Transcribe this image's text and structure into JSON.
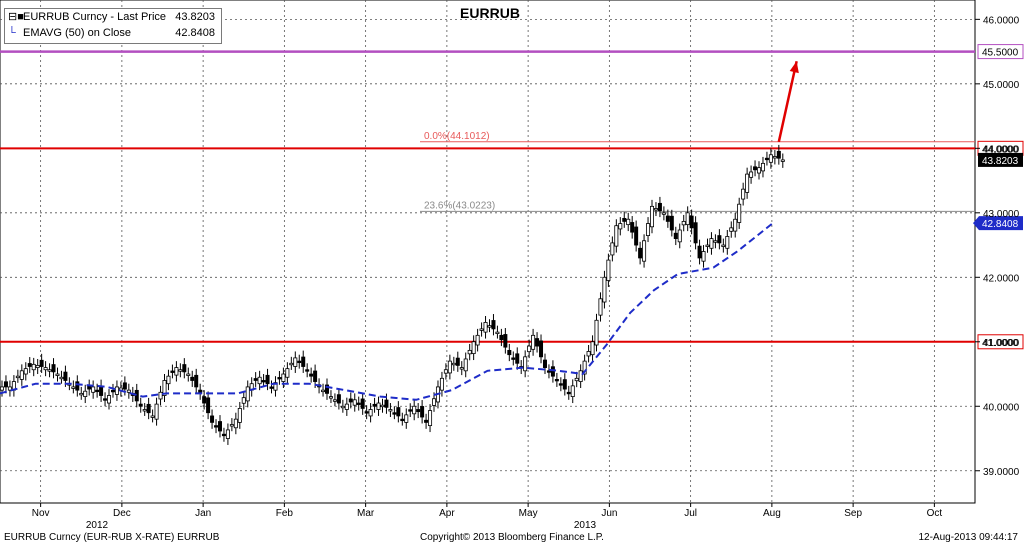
{
  "legend": {
    "series1_label": "EURRUB Curncy - Last Price",
    "series1_value": "43.8203",
    "series2_label": "EMAVG (50) on Close",
    "series2_value": "42.8408"
  },
  "footer": {
    "left": "EURRUB Curncy (EUR-RUB X-RATE) EURRUB",
    "center": "Copyright© 2013 Bloomberg Finance L.P.",
    "right": "12-Aug-2013 09:44:17"
  },
  "chart_data": {
    "type": "candlestick-line",
    "title": "EURRUB",
    "ylim": [
      38.5,
      46.3
    ],
    "y_ticks": [
      "46.0000",
      "45.0000",
      "44.0000",
      "43.0000",
      "42.0000",
      "41.0000",
      "40.0000",
      "39.0000"
    ],
    "months": [
      "Nov",
      "Dec",
      "Jan",
      "Feb",
      "Mar",
      "Apr",
      "May",
      "Jun",
      "Jul",
      "Aug",
      "Sep",
      "Oct"
    ],
    "years": [
      "2012",
      "2013"
    ],
    "grid": true,
    "colors": {
      "price": "#000000",
      "ema": "#1e2cc8",
      "level": "#e00000",
      "target": "#b34fc0",
      "fib_618": "#e85a5a",
      "fib_236": "#8a8a8a",
      "arrow": "#e00000"
    },
    "horizontal_levels": [
      {
        "value": 45.5,
        "label": "45.5000",
        "style": "target"
      },
      {
        "value": 44.0,
        "label": "44.0000",
        "style": "level"
      },
      {
        "value": 41.0,
        "label": "41.0000",
        "style": "level"
      }
    ],
    "fib_levels": [
      {
        "value": 44.1012,
        "label": "0.0%(44.1012)"
      },
      {
        "value": 43.0223,
        "label": "23.6%(43.0223)"
      }
    ],
    "last_price": {
      "value": 43.8203,
      "label": "43.8203"
    },
    "ema_last": {
      "value": 42.8408,
      "label": "42.8408"
    },
    "arrow": {
      "from": [
        65.5,
        44.1
      ],
      "to": [
        67.0,
        45.35
      ]
    },
    "price_series": [
      {
        "x": 0,
        "y": 40.3
      },
      {
        "x": 1,
        "y": 40.55
      },
      {
        "x": 2,
        "y": 40.65
      },
      {
        "x": 3,
        "y": 40.6
      },
      {
        "x": 4,
        "y": 40.5
      },
      {
        "x": 5,
        "y": 40.35
      },
      {
        "x": 6,
        "y": 40.2
      },
      {
        "x": 7,
        "y": 40.3
      },
      {
        "x": 8,
        "y": 40.1
      },
      {
        "x": 9,
        "y": 40.3
      },
      {
        "x": 10,
        "y": 40.25
      },
      {
        "x": 11,
        "y": 40.0
      },
      {
        "x": 12,
        "y": 39.85
      },
      {
        "x": 13,
        "y": 40.4
      },
      {
        "x": 14,
        "y": 40.6
      },
      {
        "x": 15,
        "y": 40.5
      },
      {
        "x": 16,
        "y": 40.2
      },
      {
        "x": 17,
        "y": 39.75
      },
      {
        "x": 18,
        "y": 39.55
      },
      {
        "x": 19,
        "y": 39.8
      },
      {
        "x": 20,
        "y": 40.3
      },
      {
        "x": 21,
        "y": 40.45
      },
      {
        "x": 22,
        "y": 40.3
      },
      {
        "x": 23,
        "y": 40.5
      },
      {
        "x": 24,
        "y": 40.75
      },
      {
        "x": 25,
        "y": 40.55
      },
      {
        "x": 26,
        "y": 40.3
      },
      {
        "x": 27,
        "y": 40.15
      },
      {
        "x": 28,
        "y": 40.0
      },
      {
        "x": 29,
        "y": 40.1
      },
      {
        "x": 30,
        "y": 39.9
      },
      {
        "x": 31,
        "y": 40.05
      },
      {
        "x": 32,
        "y": 39.95
      },
      {
        "x": 33,
        "y": 39.8
      },
      {
        "x": 34,
        "y": 40.0
      },
      {
        "x": 35,
        "y": 39.75
      },
      {
        "x": 36,
        "y": 40.3
      },
      {
        "x": 37,
        "y": 40.7
      },
      {
        "x": 38,
        "y": 40.6
      },
      {
        "x": 39,
        "y": 41.0
      },
      {
        "x": 40,
        "y": 41.3
      },
      {
        "x": 41,
        "y": 41.15
      },
      {
        "x": 42,
        "y": 40.8
      },
      {
        "x": 43,
        "y": 40.6
      },
      {
        "x": 44,
        "y": 41.1
      },
      {
        "x": 45,
        "y": 40.6
      },
      {
        "x": 46,
        "y": 40.4
      },
      {
        "x": 47,
        "y": 40.2
      },
      {
        "x": 48,
        "y": 40.55
      },
      {
        "x": 49,
        "y": 41.0
      },
      {
        "x": 50,
        "y": 42.0
      },
      {
        "x": 51,
        "y": 42.8
      },
      {
        "x": 52,
        "y": 42.9
      },
      {
        "x": 53,
        "y": 42.3
      },
      {
        "x": 54,
        "y": 43.1
      },
      {
        "x": 55,
        "y": 43.0
      },
      {
        "x": 56,
        "y": 42.6
      },
      {
        "x": 57,
        "y": 43.0
      },
      {
        "x": 58,
        "y": 42.3
      },
      {
        "x": 59,
        "y": 42.6
      },
      {
        "x": 60,
        "y": 42.5
      },
      {
        "x": 61,
        "y": 42.9
      },
      {
        "x": 62,
        "y": 43.6
      },
      {
        "x": 63,
        "y": 43.7
      },
      {
        "x": 64,
        "y": 43.9
      },
      {
        "x": 65,
        "y": 43.82
      }
    ],
    "ema_series": [
      {
        "x": 0,
        "y": 40.2
      },
      {
        "x": 3,
        "y": 40.35
      },
      {
        "x": 6,
        "y": 40.35
      },
      {
        "x": 9,
        "y": 40.3
      },
      {
        "x": 12,
        "y": 40.15
      },
      {
        "x": 14,
        "y": 40.2
      },
      {
        "x": 17,
        "y": 40.2
      },
      {
        "x": 20,
        "y": 40.2
      },
      {
        "x": 23,
        "y": 40.35
      },
      {
        "x": 26,
        "y": 40.35
      },
      {
        "x": 29,
        "y": 40.25
      },
      {
        "x": 32,
        "y": 40.15
      },
      {
        "x": 35,
        "y": 40.1
      },
      {
        "x": 38,
        "y": 40.25
      },
      {
        "x": 41,
        "y": 40.55
      },
      {
        "x": 44,
        "y": 40.6
      },
      {
        "x": 47,
        "y": 40.55
      },
      {
        "x": 49,
        "y": 40.5
      },
      {
        "x": 51,
        "y": 40.95
      },
      {
        "x": 53,
        "y": 41.45
      },
      {
        "x": 55,
        "y": 41.8
      },
      {
        "x": 57,
        "y": 42.05
      },
      {
        "x": 60,
        "y": 42.15
      },
      {
        "x": 62,
        "y": 42.4
      },
      {
        "x": 65,
        "y": 42.84
      }
    ],
    "x_domain": [
      0,
      82
    ]
  }
}
